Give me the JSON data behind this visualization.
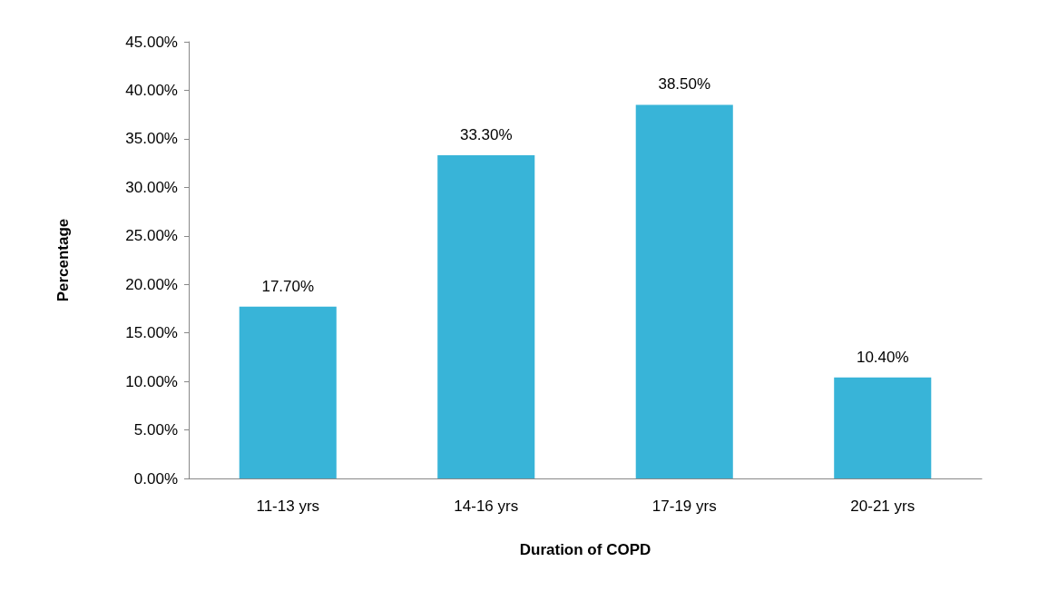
{
  "chart_data": {
    "type": "bar",
    "xlabel": "Duration of COPD",
    "ylabel": "Percentage",
    "categories": [
      "11-13 yrs",
      "14-16 yrs",
      "17-19 yrs",
      "20-21 yrs"
    ],
    "values": [
      17.7,
      33.3,
      38.5,
      10.4
    ],
    "value_labels": [
      "17.70%",
      "33.30%",
      "38.50%",
      "10.40%"
    ],
    "color": "#38b4d8",
    "ylim": [
      0,
      45
    ],
    "yticks": [
      {
        "value": 0,
        "label": "0.00%"
      },
      {
        "value": 5,
        "label": "5.00%"
      },
      {
        "value": 10,
        "label": "10.00%"
      },
      {
        "value": 15,
        "label": "15.00%"
      },
      {
        "value": 20,
        "label": "20.00%"
      },
      {
        "value": 25,
        "label": "25.00%"
      },
      {
        "value": 30,
        "label": "30.00%"
      },
      {
        "value": 35,
        "label": "35.00%"
      },
      {
        "value": 40,
        "label": "40.00%"
      },
      {
        "value": 45,
        "label": "45.00%"
      }
    ],
    "grid": false
  }
}
